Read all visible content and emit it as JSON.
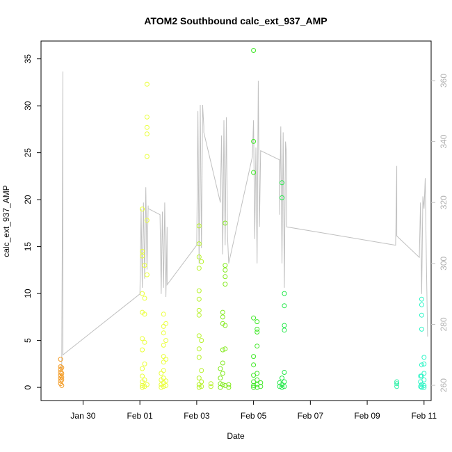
{
  "chart_data": {
    "type": "scatter",
    "title": "ATOM2 Southbound calc_ext_937_AMP",
    "xlabel": "Date",
    "ylabel": "calc_ext_937_AMP",
    "x_axis_type": "date",
    "xlim": [
      "2025-01-28 12:30",
      "2025-02-11 06:00"
    ],
    "ylim": [
      -1.4,
      36.9
    ],
    "x_ticks": [
      {
        "x": "2025-01-30 00:00",
        "label": "Jan 30"
      },
      {
        "x": "2025-02-01 00:00",
        "label": "Feb 01"
      },
      {
        "x": "2025-02-03 00:00",
        "label": "Feb 03"
      },
      {
        "x": "2025-02-05 00:00",
        "label": "Feb 05"
      },
      {
        "x": "2025-02-07 00:00",
        "label": "Feb 07"
      },
      {
        "x": "2025-02-09 00:00",
        "label": "Feb 09"
      },
      {
        "x": "2025-02-11 00:00",
        "label": "Feb 11"
      }
    ],
    "y_ticks": [
      0,
      5,
      10,
      15,
      20,
      25,
      30,
      35
    ],
    "secondary_axis": {
      "position": "right",
      "ylim": [
        255,
        373
      ],
      "ticks": [
        260,
        280,
        300,
        320,
        340,
        360
      ],
      "color": "#c0c0c0"
    },
    "marker": "open-circle",
    "series": [
      {
        "color": "#f39a22",
        "points": [
          [
            "2025-01-29 05:00",
            3.0
          ],
          [
            "2025-01-29 05:00",
            2.2
          ],
          [
            "2025-01-29 05:00",
            1.9
          ],
          [
            "2025-01-29 05:00",
            1.6
          ],
          [
            "2025-01-29 05:00",
            1.3
          ],
          [
            "2025-01-29 05:00",
            1.0
          ],
          [
            "2025-01-29 05:00",
            0.7
          ],
          [
            "2025-01-29 05:00",
            0.4
          ],
          [
            "2025-01-29 06:00",
            2.1
          ],
          [
            "2025-01-29 06:00",
            1.5
          ],
          [
            "2025-01-29 06:00",
            1.1
          ],
          [
            "2025-01-29 06:00",
            0.8
          ],
          [
            "2025-01-29 06:00",
            0.2
          ]
        ]
      },
      {
        "color": "#eaff3a",
        "points": [
          [
            "2025-02-01 02:00",
            19.0
          ],
          [
            "2025-02-01 02:00",
            14.5
          ],
          [
            "2025-02-01 02:00",
            14.0
          ],
          [
            "2025-02-01 02:00",
            10.0
          ],
          [
            "2025-02-01 02:00",
            8.0
          ],
          [
            "2025-02-01 02:00",
            5.2
          ],
          [
            "2025-02-01 02:00",
            4.0
          ],
          [
            "2025-02-01 02:00",
            2.0
          ],
          [
            "2025-02-01 02:00",
            1.2
          ],
          [
            "2025-02-01 02:00",
            0.6
          ],
          [
            "2025-02-01 02:00",
            0.2
          ],
          [
            "2025-02-01 02:00",
            0.0
          ],
          [
            "2025-02-01 04:00",
            13.0
          ],
          [
            "2025-02-01 04:00",
            9.5
          ],
          [
            "2025-02-01 04:00",
            7.8
          ],
          [
            "2025-02-01 04:00",
            4.8
          ],
          [
            "2025-02-01 04:00",
            2.5
          ],
          [
            "2025-02-01 04:00",
            0.8
          ],
          [
            "2025-02-01 04:00",
            0.1
          ],
          [
            "2025-02-01 06:00",
            32.3
          ],
          [
            "2025-02-01 06:00",
            28.8
          ],
          [
            "2025-02-01 06:00",
            27.7
          ],
          [
            "2025-02-01 06:00",
            27.0
          ],
          [
            "2025-02-01 06:00",
            24.6
          ],
          [
            "2025-02-01 06:00",
            17.8
          ],
          [
            "2025-02-01 06:00",
            12.0
          ],
          [
            "2025-02-01 06:00",
            0.3
          ],
          [
            "2025-02-01 18:00",
            1.5
          ],
          [
            "2025-02-01 18:00",
            0.8
          ],
          [
            "2025-02-01 18:00",
            0.3
          ],
          [
            "2025-02-01 18:00",
            0.0
          ],
          [
            "2025-02-01 20:00",
            7.8
          ],
          [
            "2025-02-01 20:00",
            6.5
          ],
          [
            "2025-02-01 20:00",
            5.8
          ],
          [
            "2025-02-01 20:00",
            4.5
          ],
          [
            "2025-02-01 20:00",
            3.3
          ],
          [
            "2025-02-01 20:00",
            2.7
          ],
          [
            "2025-02-01 20:00",
            1.8
          ],
          [
            "2025-02-01 20:00",
            1.0
          ],
          [
            "2025-02-01 20:00",
            0.5
          ],
          [
            "2025-02-01 20:00",
            0.1
          ],
          [
            "2025-02-01 22:00",
            6.8
          ],
          [
            "2025-02-01 22:00",
            5.0
          ],
          [
            "2025-02-01 22:00",
            3.0
          ],
          [
            "2025-02-01 22:00",
            0.7
          ],
          [
            "2025-02-01 22:00",
            0.2
          ]
        ]
      },
      {
        "color": "#b7f22a",
        "points": [
          [
            "2025-02-03 02:00",
            17.2
          ],
          [
            "2025-02-03 02:00",
            15.3
          ],
          [
            "2025-02-03 02:00",
            13.9
          ],
          [
            "2025-02-03 02:00",
            12.7
          ],
          [
            "2025-02-03 02:00",
            10.3
          ],
          [
            "2025-02-03 02:00",
            9.4
          ],
          [
            "2025-02-03 02:00",
            8.2
          ],
          [
            "2025-02-03 02:00",
            7.7
          ],
          [
            "2025-02-03 02:00",
            5.5
          ],
          [
            "2025-02-03 02:00",
            4.1
          ],
          [
            "2025-02-03 02:00",
            3.2
          ],
          [
            "2025-02-03 02:00",
            1.0
          ],
          [
            "2025-02-03 02:00",
            0.3
          ],
          [
            "2025-02-03 02:00",
            0.0
          ],
          [
            "2025-02-03 04:00",
            13.4
          ],
          [
            "2025-02-03 04:00",
            5.0
          ],
          [
            "2025-02-03 04:00",
            1.8
          ],
          [
            "2025-02-03 04:00",
            0.6
          ],
          [
            "2025-02-03 04:00",
            0.1
          ],
          [
            "2025-02-03 12:00",
            0.4
          ],
          [
            "2025-02-03 12:00",
            0.1
          ]
        ]
      },
      {
        "color": "#83ea1e",
        "points": [
          [
            "2025-02-03 20:00",
            2.0
          ],
          [
            "2025-02-03 20:00",
            1.0
          ],
          [
            "2025-02-03 20:00",
            0.4
          ],
          [
            "2025-02-03 20:00",
            0.0
          ],
          [
            "2025-02-03 22:00",
            8.0
          ],
          [
            "2025-02-03 22:00",
            7.5
          ],
          [
            "2025-02-03 22:00",
            6.8
          ],
          [
            "2025-02-03 22:00",
            4.0
          ],
          [
            "2025-02-03 22:00",
            2.6
          ],
          [
            "2025-02-03 22:00",
            1.5
          ],
          [
            "2025-02-03 22:00",
            0.3
          ],
          [
            "2025-02-04 00:00",
            17.5
          ],
          [
            "2025-02-04 00:00",
            13.0
          ],
          [
            "2025-02-04 00:00",
            12.5
          ],
          [
            "2025-02-04 00:00",
            11.8
          ],
          [
            "2025-02-04 00:00",
            11.0
          ],
          [
            "2025-02-04 00:00",
            6.6
          ],
          [
            "2025-02-04 00:00",
            4.1
          ],
          [
            "2025-02-04 00:00",
            0.2
          ],
          [
            "2025-02-04 03:00",
            0.3
          ],
          [
            "2025-02-04 03:00",
            0.0
          ]
        ]
      },
      {
        "color": "#3ee825",
        "points": [
          [
            "2025-02-05 00:00",
            35.9
          ],
          [
            "2025-02-05 00:00",
            26.2
          ],
          [
            "2025-02-05 00:00",
            22.9
          ],
          [
            "2025-02-05 00:00",
            7.4
          ],
          [
            "2025-02-05 00:00",
            3.3
          ],
          [
            "2025-02-05 00:00",
            2.4
          ],
          [
            "2025-02-05 00:00",
            1.3
          ],
          [
            "2025-02-05 00:00",
            0.6
          ],
          [
            "2025-02-05 00:00",
            0.2
          ],
          [
            "2025-02-05 00:00",
            0.0
          ],
          [
            "2025-02-05 03:00",
            7.0
          ],
          [
            "2025-02-05 03:00",
            6.2
          ],
          [
            "2025-02-05 03:00",
            5.9
          ],
          [
            "2025-02-05 03:00",
            4.4
          ],
          [
            "2025-02-05 03:00",
            1.5
          ],
          [
            "2025-02-05 03:00",
            0.8
          ],
          [
            "2025-02-05 03:00",
            0.3
          ],
          [
            "2025-02-05 03:00",
            0.0
          ],
          [
            "2025-02-05 06:00",
            0.5
          ],
          [
            "2025-02-05 06:00",
            0.1
          ]
        ]
      },
      {
        "color": "#24e84a",
        "points": [
          [
            "2025-02-05 22:00",
            0.5
          ],
          [
            "2025-02-05 22:00",
            0.1
          ],
          [
            "2025-02-06 00:00",
            21.8
          ],
          [
            "2025-02-06 00:00",
            20.2
          ],
          [
            "2025-02-06 00:00",
            1.0
          ],
          [
            "2025-02-06 00:00",
            0.3
          ],
          [
            "2025-02-06 00:00",
            0.0
          ],
          [
            "2025-02-06 02:00",
            10.0
          ],
          [
            "2025-02-06 02:00",
            8.7
          ],
          [
            "2025-02-06 02:00",
            6.6
          ],
          [
            "2025-02-06 02:00",
            6.1
          ],
          [
            "2025-02-06 02:00",
            1.6
          ],
          [
            "2025-02-06 02:00",
            0.6
          ],
          [
            "2025-02-06 02:00",
            0.1
          ]
        ]
      },
      {
        "color": "#29f0a6",
        "points": [
          [
            "2025-02-10 01:00",
            0.6
          ],
          [
            "2025-02-10 01:00",
            0.4
          ],
          [
            "2025-02-10 01:00",
            0.1
          ]
        ]
      },
      {
        "color": "#2ef5c6",
        "points": [
          [
            "2025-02-10 21:00",
            1.2
          ],
          [
            "2025-02-10 21:00",
            0.6
          ],
          [
            "2025-02-10 21:00",
            0.1
          ],
          [
            "2025-02-10 22:00",
            9.4
          ],
          [
            "2025-02-10 22:00",
            8.8
          ],
          [
            "2025-02-10 22:00",
            7.7
          ],
          [
            "2025-02-10 22:00",
            6.2
          ],
          [
            "2025-02-10 22:00",
            2.4
          ],
          [
            "2025-02-10 22:00",
            1.2
          ],
          [
            "2025-02-10 22:00",
            0.3
          ],
          [
            "2025-02-10 22:00",
            0.0
          ],
          [
            "2025-02-11 00:00",
            3.2
          ],
          [
            "2025-02-11 00:00",
            2.5
          ],
          [
            "2025-02-11 00:00",
            1.5
          ],
          [
            "2025-02-11 00:00",
            0.8
          ],
          [
            "2025-02-11 00:00",
            0.2
          ],
          [
            "2025-02-11 00:00",
            0.0
          ]
        ]
      }
    ],
    "secondary_line": {
      "axis": "right",
      "color": "#c0c0c0",
      "points": [
        [
          "2025-01-29 05:00",
          265
        ],
        [
          "2025-01-29 06:00",
          266
        ],
        [
          "2025-01-29 07:00",
          363
        ],
        [
          "2025-01-29 07:00",
          270
        ],
        [
          "2025-02-01 00:00",
          290
        ],
        [
          "2025-02-01 01:00",
          318
        ],
        [
          "2025-02-01 02:00",
          292
        ],
        [
          "2025-02-01 03:00",
          320
        ],
        [
          "2025-02-01 04:00",
          295
        ],
        [
          "2025-02-01 05:00",
          325
        ],
        [
          "2025-02-01 06:00",
          298
        ],
        [
          "2025-02-01 07:00",
          319
        ],
        [
          "2025-02-01 07:00",
          318
        ],
        [
          "2025-02-01 17:00",
          316
        ],
        [
          "2025-02-01 18:00",
          290
        ],
        [
          "2025-02-01 19:00",
          317
        ],
        [
          "2025-02-01 20:00",
          292
        ],
        [
          "2025-02-01 21:00",
          320
        ],
        [
          "2025-02-01 22:00",
          289
        ],
        [
          "2025-02-01 23:00",
          312
        ],
        [
          "2025-02-01 23:00",
          293
        ],
        [
          "2025-02-03 00:00",
          306
        ],
        [
          "2025-02-03 01:00",
          350
        ],
        [
          "2025-02-03 02:00",
          300
        ],
        [
          "2025-02-03 03:00",
          352
        ],
        [
          "2025-02-03 04:00",
          305
        ],
        [
          "2025-02-03 05:00",
          352
        ],
        [
          "2025-02-03 06:00",
          345
        ],
        [
          "2025-02-03 06:00",
          343
        ],
        [
          "2025-02-03 20:00",
          320
        ],
        [
          "2025-02-03 21:00",
          342
        ],
        [
          "2025-02-03 22:00",
          303
        ],
        [
          "2025-02-03 23:00",
          347
        ],
        [
          "2025-02-04 00:00",
          306
        ],
        [
          "2025-02-04 01:00",
          348
        ],
        [
          "2025-02-04 02:00",
          309
        ],
        [
          "2025-02-04 03:00",
          300
        ],
        [
          "2025-02-04 23:00",
          335
        ],
        [
          "2025-02-05 00:00",
          347
        ],
        [
          "2025-02-05 01:00",
          308
        ],
        [
          "2025-02-05 02:00",
          338
        ],
        [
          "2025-02-05 03:00",
          300
        ],
        [
          "2025-02-05 04:00",
          360
        ],
        [
          "2025-02-05 05:00",
          312
        ],
        [
          "2025-02-05 06:00",
          337
        ],
        [
          "2025-02-05 22:00",
          334
        ],
        [
          "2025-02-05 22:00",
          316
        ],
        [
          "2025-02-05 23:00",
          345
        ],
        [
          "2025-02-06 00:00",
          300
        ],
        [
          "2025-02-06 01:00",
          343
        ],
        [
          "2025-02-06 02:00",
          292
        ],
        [
          "2025-02-06 03:00",
          340
        ],
        [
          "2025-02-06 04:00",
          335
        ],
        [
          "2025-02-06 04:00",
          312
        ],
        [
          "2025-02-10 00:00",
          306
        ],
        [
          "2025-02-10 01:00",
          332
        ],
        [
          "2025-02-10 01:00",
          309
        ],
        [
          "2025-02-10 20:00",
          302
        ],
        [
          "2025-02-10 21:00",
          320
        ],
        [
          "2025-02-10 22:00",
          290
        ],
        [
          "2025-02-10 23:00",
          322
        ],
        [
          "2025-02-11 00:00",
          318
        ],
        [
          "2025-02-11 01:00",
          328
        ],
        [
          "2025-02-11 02:00",
          300
        ],
        [
          "2025-02-11 03:00",
          276
        ]
      ]
    }
  }
}
